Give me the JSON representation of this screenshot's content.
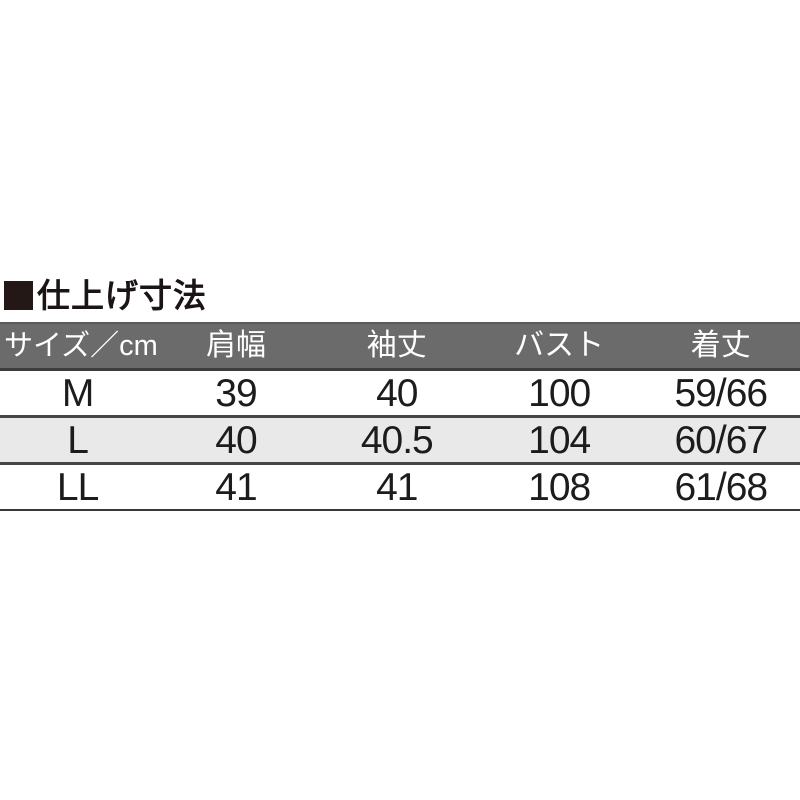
{
  "section": {
    "title": "仕上げ寸法",
    "bullet_color": "#231815"
  },
  "size_table": {
    "columns": [
      "サイズ／cm",
      "肩幅",
      "袖丈",
      "バスト",
      "着丈"
    ],
    "rows": [
      {
        "size": "M",
        "values": [
          "39",
          "40",
          "100",
          "59/66"
        ]
      },
      {
        "size": "L",
        "values": [
          "40",
          "40.5",
          "104",
          "60/67"
        ]
      },
      {
        "size": "LL",
        "values": [
          "41",
          "41",
          "108",
          "61/68"
        ]
      }
    ],
    "colors": {
      "header_bg": "#6b6b6b",
      "header_text": "#ffffff",
      "alt_row_bg": "#e9e9e9",
      "separator": "#464646",
      "text": "#1c1c1c"
    }
  }
}
